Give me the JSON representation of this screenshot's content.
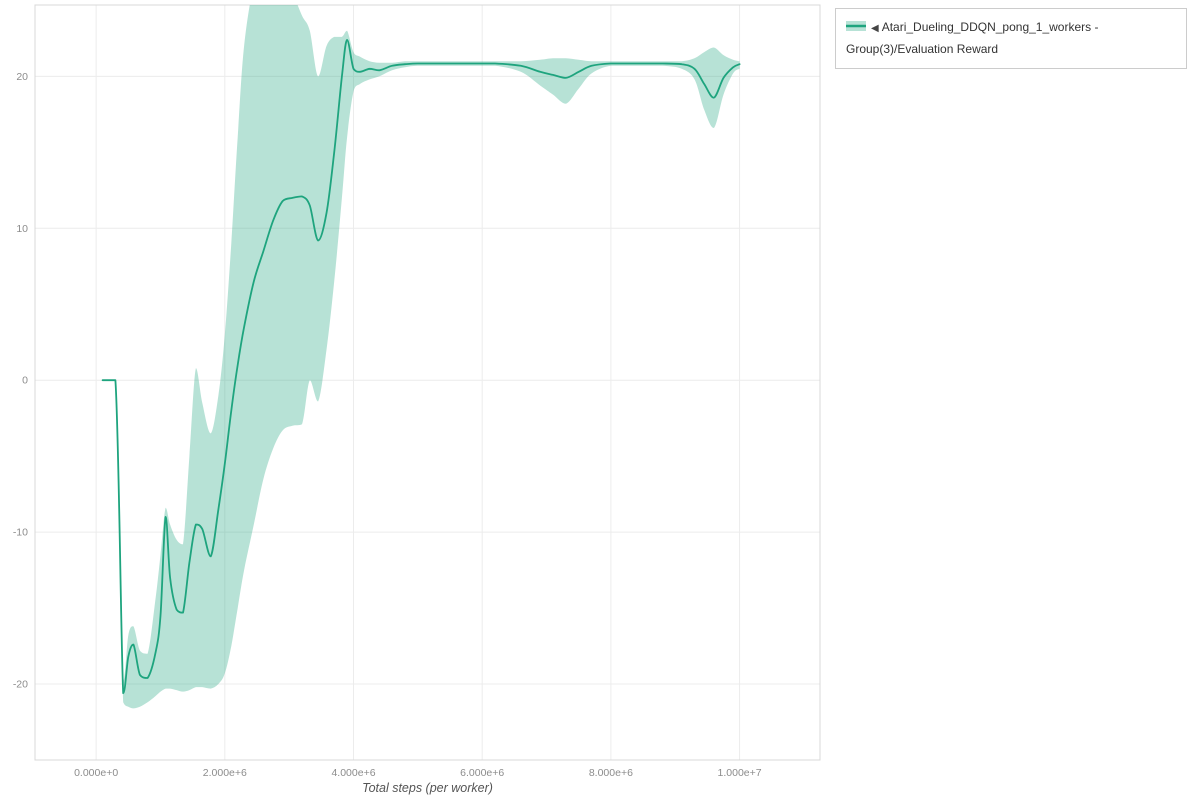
{
  "legend": {
    "items": [
      {
        "toggle_glyph": "◀",
        "label": "Atari_Dueling_DDQN_pong_1_workers - Group(3)/Evaluation Reward"
      }
    ]
  },
  "chart_data": {
    "type": "line",
    "title": "",
    "xlabel": "Total steps (per worker)",
    "ylabel": "",
    "xlim": [
      -950000,
      11250000
    ],
    "ylim": [
      -25,
      24.7
    ],
    "grid": true,
    "legend_position": "outside-top-right",
    "x_ticks": [
      {
        "value": 0,
        "label": "0.000e+0"
      },
      {
        "value": 2000000,
        "label": "2.000e+6"
      },
      {
        "value": 4000000,
        "label": "4.000e+6"
      },
      {
        "value": 6000000,
        "label": "6.000e+6"
      },
      {
        "value": 8000000,
        "label": "8.000e+6"
      },
      {
        "value": 10000000,
        "label": "1.000e+7"
      }
    ],
    "y_ticks": [
      {
        "value": -20,
        "label": "-20"
      },
      {
        "value": -10,
        "label": "-10"
      },
      {
        "value": 0,
        "label": "0"
      },
      {
        "value": 10,
        "label": "10"
      },
      {
        "value": 20,
        "label": "20"
      }
    ],
    "colors": {
      "line": "#1ea47e",
      "band": "rgba(30,164,126,0.32)",
      "grid": "#ececec",
      "frame": "#d8d8d8",
      "tick_text": "#8c8c8c"
    },
    "series": [
      {
        "name": "Atari_Dueling_DDQN_pong_1_workers - Group(3)/Evaluation Reward",
        "x": [
          100000,
          300000,
          420000,
          500000,
          580000,
          680000,
          800000,
          920000,
          1000000,
          1080000,
          1150000,
          1250000,
          1350000,
          1450000,
          1550000,
          1650000,
          1780000,
          1900000,
          2000000,
          2100000,
          2200000,
          2300000,
          2450000,
          2600000,
          2750000,
          2900000,
          3050000,
          3200000,
          3320000,
          3450000,
          3580000,
          3700000,
          3820000,
          3900000,
          4000000,
          4100000,
          4250000,
          4400000,
          4600000,
          4800000,
          5000000,
          5400000,
          5800000,
          6200000,
          6600000,
          6900000,
          7100000,
          7300000,
          7500000,
          7700000,
          8000000,
          8400000,
          8800000,
          9100000,
          9300000,
          9450000,
          9600000,
          9750000,
          9900000,
          10000000
        ],
        "mean": [
          0,
          0,
          -20.6,
          -18.2,
          -17.4,
          -19.4,
          -19.6,
          -18.0,
          -15.5,
          -9.0,
          -13.0,
          -15.1,
          -15.3,
          -12.0,
          -9.5,
          -9.8,
          -11.6,
          -8.5,
          -5.5,
          -2.0,
          1.0,
          3.5,
          6.5,
          8.5,
          10.5,
          11.8,
          12.0,
          12.1,
          11.5,
          9.2,
          11.0,
          15.0,
          20.0,
          22.4,
          20.5,
          20.3,
          20.5,
          20.4,
          20.7,
          20.8,
          20.85,
          20.85,
          20.85,
          20.85,
          20.7,
          20.3,
          20.1,
          19.9,
          20.3,
          20.7,
          20.85,
          20.85,
          20.85,
          20.8,
          20.5,
          19.5,
          18.6,
          19.9,
          20.6,
          20.8
        ],
        "lower": [
          0,
          0,
          -21.2,
          -21.5,
          -21.6,
          -21.5,
          -21.2,
          -20.8,
          -20.5,
          -20.3,
          -20.3,
          -20.4,
          -20.5,
          -20.4,
          -20.2,
          -20.2,
          -20.3,
          -20.0,
          -19.3,
          -17.5,
          -15.0,
          -12.5,
          -9.5,
          -6.5,
          -4.5,
          -3.3,
          -3.0,
          -2.9,
          0.0,
          -1.4,
          2.0,
          6.5,
          12.0,
          16.0,
          19.0,
          19.5,
          19.8,
          20.0,
          20.4,
          20.6,
          20.7,
          20.7,
          20.7,
          20.7,
          20.3,
          19.4,
          18.8,
          18.2,
          19.2,
          20.2,
          20.7,
          20.7,
          20.7,
          20.5,
          19.8,
          17.8,
          16.6,
          18.8,
          20.2,
          20.5
        ],
        "upper": [
          0,
          0,
          -19.8,
          -16.8,
          -16.2,
          -17.8,
          -18.0,
          -14.5,
          -11.5,
          -8.4,
          -9.5,
          -10.5,
          -10.8,
          -5.0,
          0.8,
          -1.5,
          -3.5,
          -1.0,
          3.0,
          9.0,
          16.0,
          22.0,
          26.0,
          27.0,
          27.0,
          26.5,
          25.5,
          24.0,
          23.0,
          20.0,
          22.0,
          22.6,
          22.6,
          23.0,
          21.6,
          21.3,
          21.0,
          20.9,
          20.9,
          21.0,
          21.0,
          21.0,
          21.0,
          21.0,
          21.0,
          21.1,
          21.2,
          21.2,
          21.1,
          21.0,
          21.0,
          21.0,
          21.0,
          21.0,
          21.2,
          21.6,
          21.9,
          21.4,
          21.1,
          21.0
        ]
      }
    ]
  }
}
